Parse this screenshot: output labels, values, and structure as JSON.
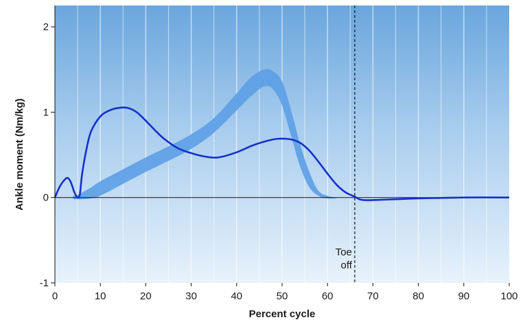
{
  "chart_data": {
    "type": "line",
    "title": "",
    "xlabel": "Percent cycle",
    "ylabel": "Ankle moment (Nm/kg)",
    "xlim": [
      0,
      100
    ],
    "ylim": [
      -1,
      2.25
    ],
    "xticks": [
      0,
      10,
      20,
      30,
      40,
      50,
      60,
      70,
      80,
      90,
      100
    ],
    "yticks": [
      -1,
      0,
      1,
      2
    ],
    "grid": "vertical",
    "colors": {
      "background_top": "#6aa6dd",
      "background_bottom": "#e8f2fb",
      "grid": "#ffffff",
      "curve": "#1530c8",
      "band": "#5c9ee6",
      "zero_line": "#111111"
    },
    "series": [
      {
        "style": "line",
        "x": [
          0,
          1,
          2,
          2.8,
          3.5,
          4.3,
          5,
          5.5,
          6,
          7,
          8,
          10,
          12,
          14,
          16,
          18,
          20,
          22,
          24,
          27,
          30,
          33,
          36,
          40,
          44,
          48,
          50,
          52,
          54,
          56,
          58,
          60,
          62,
          64,
          66,
          67,
          68,
          70,
          75,
          80,
          90,
          100
        ],
        "y": [
          0,
          0.12,
          0.2,
          0.23,
          0.18,
          0.06,
          0.0,
          0.04,
          0.28,
          0.58,
          0.78,
          0.95,
          1.02,
          1.05,
          1.05,
          1.0,
          0.9,
          0.79,
          0.69,
          0.58,
          0.52,
          0.48,
          0.47,
          0.53,
          0.62,
          0.68,
          0.69,
          0.68,
          0.64,
          0.55,
          0.42,
          0.28,
          0.15,
          0.06,
          0.01,
          -0.02,
          -0.03,
          -0.03,
          -0.02,
          -0.01,
          0.0,
          0.0
        ]
      },
      {
        "style": "band",
        "x": [
          4,
          5,
          6,
          8,
          10,
          15,
          20,
          25,
          30,
          35,
          40,
          43,
          46,
          48,
          50,
          52,
          54,
          56,
          58,
          60,
          62
        ],
        "y_low": [
          -0.02,
          -0.02,
          -0.02,
          -0.01,
          0.02,
          0.16,
          0.3,
          0.43,
          0.57,
          0.76,
          1.02,
          1.18,
          1.3,
          1.27,
          1.08,
          0.72,
          0.36,
          0.12,
          0.02,
          -0.01,
          -0.01
        ],
        "y_high": [
          0.02,
          0.03,
          0.06,
          0.12,
          0.19,
          0.33,
          0.47,
          0.6,
          0.74,
          0.93,
          1.22,
          1.4,
          1.5,
          1.48,
          1.36,
          1.02,
          0.62,
          0.3,
          0.08,
          0.02,
          0.0
        ]
      }
    ],
    "annotations": [
      {
        "text_lines": [
          "Toe",
          "off"
        ],
        "x": 66,
        "style": "dashed-vertical-line"
      }
    ]
  }
}
